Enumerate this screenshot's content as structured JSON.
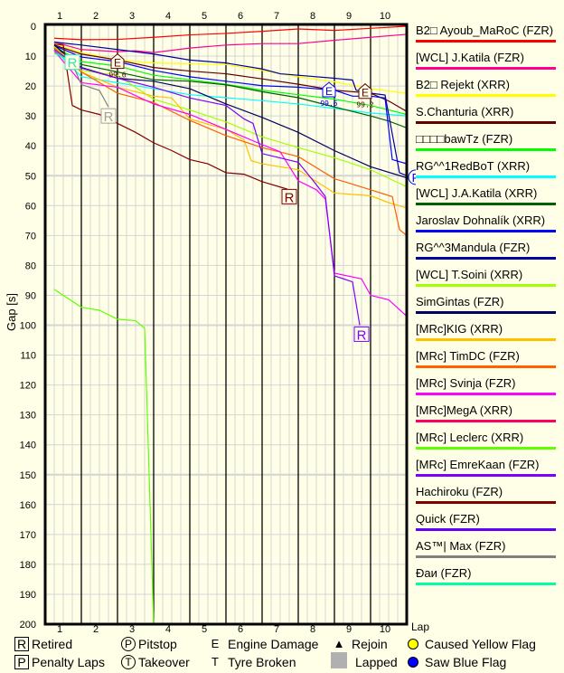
{
  "chart_data": {
    "type": "line",
    "ylabel": "Gap [s]",
    "xlabel": "Lap",
    "xlim": [
      0,
      10
    ],
    "ylim": [
      0,
      200
    ],
    "y_inverted": true,
    "grid": true,
    "legend_position": "right",
    "x_ticks": [
      "1",
      "2",
      "3",
      "4",
      "5",
      "6",
      "7",
      "8",
      "9",
      "10"
    ],
    "y_ticks": [
      "0",
      "10",
      "20",
      "30",
      "40",
      "50",
      "60",
      "70",
      "80",
      "90",
      "100",
      "110",
      "120",
      "130",
      "140",
      "150",
      "160",
      "170",
      "180",
      "190",
      "200"
    ],
    "series": [
      {
        "name": "B2□ Ayoub_MaRoC (FZR)",
        "color": "#ff0000",
        "points": [
          [
            0.25,
            4
          ],
          [
            1,
            4.5
          ],
          [
            2,
            4.4
          ],
          [
            3,
            3.7
          ],
          [
            4,
            2.9
          ],
          [
            5,
            2.4
          ],
          [
            6,
            1.7
          ],
          [
            7,
            0.9
          ],
          [
            8,
            1.4
          ],
          [
            9,
            0.7
          ],
          [
            10,
            0
          ]
        ]
      },
      {
        "name": "[WCL] J.Katila (FZR)",
        "color": "#ff0090",
        "points": [
          [
            0.25,
            5.3
          ],
          [
            1,
            7.8
          ],
          [
            2,
            8.5
          ],
          [
            2.5,
            8.2
          ],
          [
            3,
            8.8
          ],
          [
            4,
            7.3
          ],
          [
            5,
            6.3
          ],
          [
            6,
            5.8
          ],
          [
            7,
            5.8
          ],
          [
            8,
            4.7
          ],
          [
            9,
            3.7
          ],
          [
            10,
            2.7
          ]
        ]
      },
      {
        "name": "B2□ Rejekt (XRR)",
        "color": "#ffff00",
        "points": [
          [
            0.25,
            5.8
          ],
          [
            1,
            8.8
          ],
          [
            2,
            11.3
          ],
          [
            3,
            12.3
          ],
          [
            4,
            12.5
          ],
          [
            5,
            12.8
          ],
          [
            6,
            14.8
          ],
          [
            7,
            16.9
          ],
          [
            8,
            18.6
          ],
          [
            9,
            20.9
          ],
          [
            10,
            22.4
          ]
        ]
      },
      {
        "name": "S.Chanturia (XRR)",
        "color": "#600000",
        "points": [
          [
            0.25,
            6.3
          ],
          [
            1,
            9.3
          ],
          [
            2,
            11.3
          ],
          [
            3,
            13.8
          ],
          [
            4,
            15
          ],
          [
            5,
            15.9
          ],
          [
            6,
            17.6
          ],
          [
            7,
            19.4
          ],
          [
            8,
            21.4
          ],
          [
            9,
            22.4
          ],
          [
            9.5,
            25
          ],
          [
            10,
            28.5
          ]
        ]
      },
      {
        "name": "□□□□bawTz (FZR)",
        "color": "#00ff00",
        "points": [
          [
            0.25,
            6.8
          ],
          [
            1,
            11.8
          ],
          [
            2,
            13.3
          ],
          [
            3,
            16.4
          ],
          [
            4,
            17.9
          ],
          [
            5,
            19.4
          ],
          [
            6,
            21.4
          ],
          [
            7,
            22.9
          ],
          [
            8,
            24.4
          ],
          [
            9,
            26.5
          ],
          [
            10,
            29.5
          ]
        ]
      },
      {
        "name": "RG^^1RedBoT (XRR)",
        "color": "#00ffff",
        "points": [
          [
            0.25,
            7.8
          ],
          [
            1,
            16.9
          ],
          [
            2,
            18.9
          ],
          [
            3,
            20.9
          ],
          [
            4,
            22.9
          ],
          [
            5,
            23.9
          ],
          [
            6,
            24.9
          ],
          [
            7,
            26
          ],
          [
            8,
            27.5
          ],
          [
            9,
            29
          ],
          [
            10,
            30
          ]
        ]
      },
      {
        "name": "[WCL] J.A.Katila (XRR)",
        "color": "#006000",
        "points": [
          [
            0.25,
            7.1
          ],
          [
            1,
            12.8
          ],
          [
            2,
            15.3
          ],
          [
            3,
            17.9
          ],
          [
            4,
            18.4
          ],
          [
            5,
            19.6
          ],
          [
            6,
            21.9
          ],
          [
            7,
            23.9
          ],
          [
            8,
            27
          ],
          [
            9,
            30
          ],
          [
            9.5,
            31.7
          ],
          [
            10,
            34
          ]
        ]
      },
      {
        "name": "Jaroslav Dohnalík (XRR)",
        "color": "#0000ff",
        "points": [
          [
            0.25,
            6.5
          ],
          [
            1,
            10.3
          ],
          [
            2,
            11.8
          ],
          [
            3,
            14.8
          ],
          [
            4,
            16.9
          ],
          [
            5,
            18.4
          ],
          [
            6,
            19.9
          ],
          [
            7,
            20.4
          ],
          [
            8,
            21.4
          ],
          [
            8.5,
            23.4
          ],
          [
            9,
            23.4
          ],
          [
            9.4,
            24
          ],
          [
            9.6,
            44.6
          ],
          [
            10,
            46
          ]
        ]
      },
      {
        "name": "RG^^3Mandula (FZR)",
        "color": "#0000a0",
        "points": [
          [
            0.25,
            5.3
          ],
          [
            1,
            6.3
          ],
          [
            2,
            7.8
          ],
          [
            3,
            9.3
          ],
          [
            4,
            11.3
          ],
          [
            5,
            12.3
          ],
          [
            6,
            14.3
          ],
          [
            6.5,
            15.9
          ],
          [
            7,
            16.4
          ],
          [
            8,
            17.4
          ],
          [
            8.5,
            18
          ],
          [
            8.6,
            21.4
          ],
          [
            9,
            22.4
          ],
          [
            9.4,
            23
          ],
          [
            9.8,
            49
          ],
          [
            10,
            50
          ],
          [
            10.3,
            57
          ]
        ]
      },
      {
        "name": "[WCL] T.Soini (XRR)",
        "color": "#a0ff00",
        "points": [
          [
            0.25,
            7.3
          ],
          [
            1,
            14.8
          ],
          [
            2,
            16.4
          ],
          [
            3,
            24.4
          ],
          [
            4,
            28
          ],
          [
            5,
            32
          ],
          [
            6,
            37
          ],
          [
            7,
            40.6
          ],
          [
            8,
            44
          ],
          [
            9,
            48
          ],
          [
            10,
            53.7
          ]
        ]
      },
      {
        "name": "SimGintas (FZR)",
        "color": "#000060",
        "points": [
          [
            0.25,
            6.3
          ],
          [
            1,
            13.8
          ],
          [
            2,
            17.4
          ],
          [
            3,
            18.4
          ],
          [
            4,
            20.9
          ],
          [
            5,
            26
          ],
          [
            6,
            30.5
          ],
          [
            7,
            35.5
          ],
          [
            8,
            41.6
          ],
          [
            9,
            47
          ],
          [
            10,
            50.7
          ]
        ]
      },
      {
        "name": "[MRc]KIG (XRR)",
        "color": "#ffc000",
        "points": [
          [
            0.25,
            6.8
          ],
          [
            1,
            15.3
          ],
          [
            2,
            20.4
          ],
          [
            3,
            23.4
          ],
          [
            3.5,
            24
          ],
          [
            4,
            31
          ],
          [
            5,
            34.5
          ],
          [
            5.5,
            38
          ],
          [
            5.7,
            45
          ],
          [
            6,
            46
          ],
          [
            7,
            48
          ],
          [
            8,
            55.8
          ],
          [
            9,
            56.7
          ],
          [
            9.5,
            59
          ],
          [
            10,
            60.8
          ]
        ]
      },
      {
        "name": "[MRc] TimDC (FZR)",
        "color": "#ff6000",
        "points": [
          [
            0.25,
            7.3
          ],
          [
            1,
            15.3
          ],
          [
            2,
            22.4
          ],
          [
            3,
            25.5
          ],
          [
            4,
            31.5
          ],
          [
            5,
            36.6
          ],
          [
            6,
            40.6
          ],
          [
            7,
            43.6
          ],
          [
            8,
            51
          ],
          [
            9,
            54.7
          ],
          [
            9.6,
            57
          ],
          [
            9.8,
            68
          ],
          [
            10,
            70
          ]
        ]
      },
      {
        "name": "[MRc] Svinja (FZR)",
        "color": "#ff00ff",
        "points": [
          [
            0.25,
            8.2
          ],
          [
            1,
            18.9
          ],
          [
            2,
            20.4
          ],
          [
            3,
            26
          ],
          [
            4,
            29.5
          ],
          [
            5,
            34.5
          ],
          [
            6,
            39.6
          ],
          [
            6.5,
            42
          ],
          [
            7,
            51.7
          ],
          [
            7.5,
            54.7
          ],
          [
            7.75,
            57.8
          ],
          [
            8,
            82.6
          ],
          [
            8.75,
            84.5
          ],
          [
            9,
            90
          ],
          [
            9.5,
            91.5
          ],
          [
            10,
            97
          ]
        ]
      },
      {
        "name": "[MRc]MegA (XRR)",
        "color": "#ff0060",
        "points": []
      },
      {
        "name": "[MRc] Leclerc (XRR)",
        "color": "#60ff00",
        "points": [
          [
            0.25,
            88
          ],
          [
            1,
            94
          ],
          [
            1.5,
            95
          ],
          [
            2,
            98
          ],
          [
            2.5,
            98.5
          ],
          [
            2.75,
            101
          ],
          [
            2.8,
            120
          ],
          [
            2.85,
            140
          ],
          [
            2.9,
            160
          ],
          [
            2.95,
            180
          ],
          [
            3,
            200
          ]
        ]
      },
      {
        "name": "[MRc] EmreKaan (FZR)",
        "color": "#8000ff",
        "points": [
          [
            0.25,
            7.8
          ],
          [
            1,
            14
          ],
          [
            2,
            17.4
          ],
          [
            3,
            20.4
          ],
          [
            4,
            24
          ],
          [
            5,
            26.5
          ],
          [
            5.5,
            31
          ],
          [
            5.75,
            32.5
          ],
          [
            6,
            42.6
          ],
          [
            7,
            45.5
          ],
          [
            7.5,
            53
          ],
          [
            7.75,
            57
          ],
          [
            8,
            83.5
          ],
          [
            8.5,
            85.5
          ],
          [
            8.7,
            100
          ]
        ]
      },
      {
        "name": "Hachiroku (FZR)",
        "color": "#800000",
        "points": [
          [
            0.25,
            6
          ],
          [
            0.5,
            6.3
          ],
          [
            0.75,
            26.5
          ],
          [
            1,
            28
          ],
          [
            1.5,
            29.5
          ],
          [
            2,
            32.5
          ],
          [
            2.5,
            35.5
          ],
          [
            3,
            39
          ],
          [
            3.5,
            41.6
          ],
          [
            4,
            44.6
          ],
          [
            4.5,
            46
          ],
          [
            5,
            49
          ],
          [
            5.5,
            49.5
          ],
          [
            6,
            52
          ],
          [
            6.7,
            54.5
          ]
        ]
      },
      {
        "name": "Quick (FZR)",
        "color": "#6000ff",
        "points": []
      },
      {
        "name": "AS™| Max (FZR)",
        "color": "#808080",
        "points": [
          [
            0.25,
            8
          ],
          [
            0.75,
            12.5
          ],
          [
            1,
            19.5
          ],
          [
            1.5,
            21.5
          ],
          [
            1.75,
            27
          ]
        ]
      },
      {
        "name": "Đaи (FZR)",
        "color": "#00ffa0",
        "points": [
          [
            0.25,
            9
          ],
          [
            0.6,
            11
          ]
        ]
      }
    ],
    "markers": [
      {
        "type": "retired",
        "label": "R",
        "series": "Đaи (FZR)",
        "lap": 0.75,
        "gap": 12,
        "color": "#40e0b0"
      },
      {
        "type": "retired",
        "label": "R",
        "series": "AS™| Max (FZR)",
        "lap": 1.75,
        "gap": 30,
        "color": "#a0a0a0"
      },
      {
        "type": "retired",
        "label": "R",
        "series": "Hachiroku (FZR)",
        "lap": 6.75,
        "gap": 57,
        "color": "#800000"
      },
      {
        "type": "retired",
        "label": "R",
        "series": "[MRc] EmreKaan (FZR)",
        "lap": 8.75,
        "gap": 103,
        "color": "#8000ff"
      },
      {
        "type": "engine",
        "label": "E",
        "value": "99.6",
        "lap": 2,
        "gap": 12,
        "color": "#600000"
      },
      {
        "type": "engine",
        "label": "E",
        "value": "99.6",
        "lap": 7.85,
        "gap": 21.5,
        "color": "#0000ff"
      },
      {
        "type": "engine",
        "label": "E",
        "value": "99.2",
        "lap": 8.85,
        "gap": 22,
        "color": "#600000"
      },
      {
        "type": "pitstop",
        "label": "P",
        "lap": 10.25,
        "gap": 50.5,
        "color": "#0000ff"
      }
    ]
  },
  "bottom_legend": {
    "retired": {
      "symbol": "R",
      "label": "Retired"
    },
    "penalty": {
      "symbol": "P",
      "label": "Penalty Laps"
    },
    "pitstop": {
      "symbol": "P",
      "label": "Pitstop"
    },
    "takeover": {
      "symbol": "T",
      "label": "Takeover"
    },
    "engine": {
      "symbol": "E",
      "label": "Engine Damage"
    },
    "tyre": {
      "symbol": "T",
      "label": "Tyre Broken"
    },
    "rejoin": {
      "symbol": "▲",
      "label": "Rejoin"
    },
    "lapped": {
      "label": "Lapped",
      "color": "#b0b0b0"
    },
    "yellow": {
      "label": "Caused Yellow Flag",
      "color": "#ffff00"
    },
    "blue": {
      "label": "Saw Blue Flag",
      "color": "#0000ff"
    }
  }
}
